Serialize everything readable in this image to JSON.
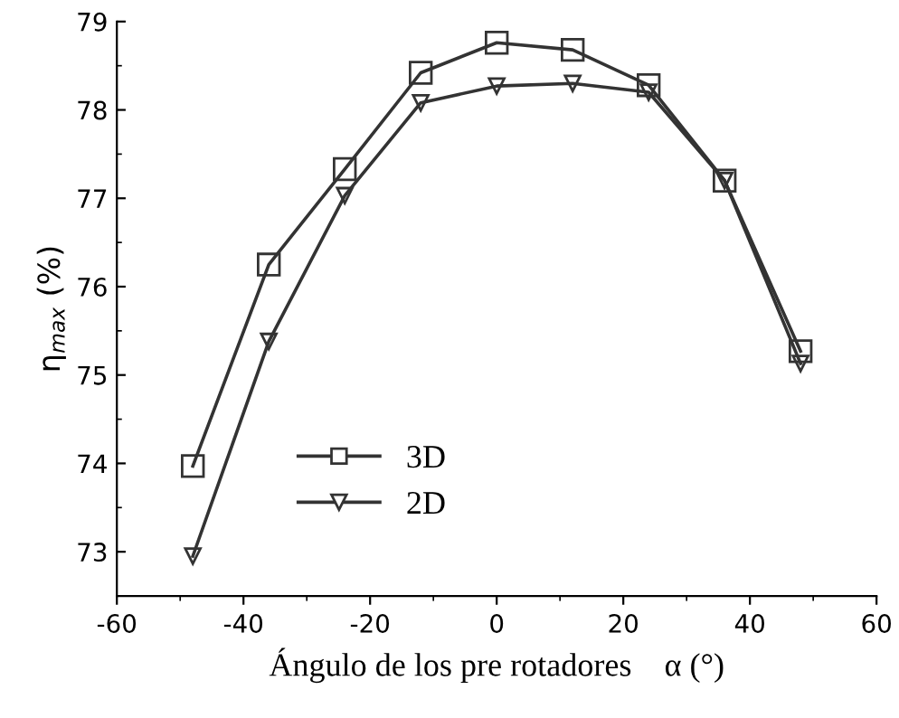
{
  "chart_data": {
    "type": "line",
    "xlabel": "Ángulo de los pre rotadores    α (°)",
    "ylabel": "η$_{max}$ (%)",
    "x": [
      -48,
      -36,
      -24,
      -12,
      0,
      12,
      24,
      36,
      48
    ],
    "series": [
      {
        "name": "3D",
        "color": "#333333",
        "marker": "square",
        "values": [
          73.97,
          76.25,
          77.33,
          78.42,
          78.76,
          78.68,
          78.28,
          77.2,
          75.27
        ]
      },
      {
        "name": "2D",
        "color": "#333333",
        "marker": "triangle",
        "values": [
          72.95,
          75.38,
          77.03,
          78.08,
          78.27,
          78.3,
          78.2,
          77.2,
          75.13
        ]
      }
    ],
    "xlim": [
      -60,
      60
    ],
    "ylim": [
      72.5,
      79
    ],
    "xticks": [
      -60,
      -40,
      -20,
      0,
      20,
      40,
      60
    ],
    "yticks": [
      73,
      74,
      75,
      76,
      77,
      78,
      79
    ],
    "grid": false,
    "legend": "bottom left",
    "line_style": "solid"
  }
}
